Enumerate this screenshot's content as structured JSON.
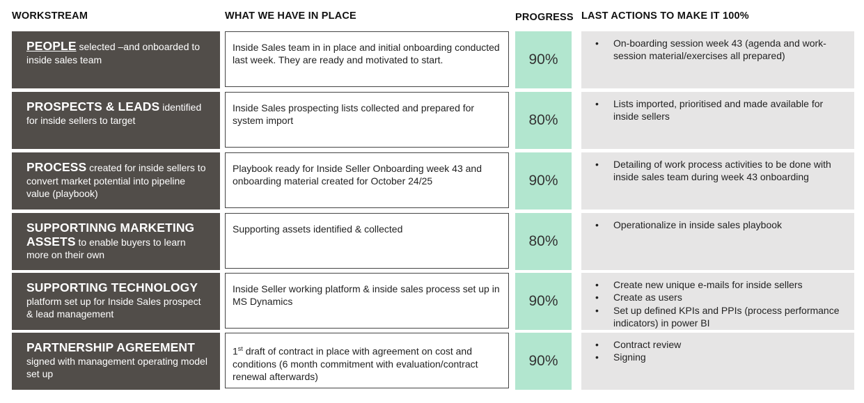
{
  "headers": {
    "workstream": "WORKSTREAM",
    "in_place": "WHAT WE HAVE IN PLACE",
    "progress": "PROGRESS",
    "last_actions": "LAST ACTIONS TO MAKE IT 100%"
  },
  "rows": [
    {
      "title": "PEOPLE",
      "desc": " selected –and onboarded to inside sales team",
      "in_place": "Inside Sales team in in place and initial onboarding conducted last week. They are ready and motivated to start.",
      "progress": "90%",
      "actions": [
        "On-boarding session week 43 (agenda and work-session material/exercises all prepared)"
      ]
    },
    {
      "title": "PROSPECTS & LEADS",
      "desc": " identified for inside sellers to target",
      "in_place": "Inside Sales prospecting lists collected and prepared for system import",
      "progress": "80%",
      "actions": [
        "Lists imported, prioritised and made available for inside sellers"
      ]
    },
    {
      "title": "PROCESS",
      "desc": " created for inside sellers to convert market potential into pipeline value (playbook)",
      "in_place": "Playbook ready for Inside Seller Onboarding week 43 and onboarding material created for October 24/25",
      "progress": "90%",
      "actions": [
        "Detailing of work process activities to be done with inside sales team during week 43 onboarding"
      ]
    },
    {
      "title": "SUPPORTINNG MARKETING ASSETS",
      "desc": " to enable buyers to learn more on their own",
      "in_place": "Supporting assets identified & collected",
      "progress": "80%",
      "actions": [
        "Operationalize in inside sales playbook"
      ]
    },
    {
      "title": "SUPPORTING TECHNOLOGY",
      "desc": " platform set up for Inside Sales prospect & lead management",
      "in_place": "Inside Seller working platform & inside sales process set up in MS Dynamics",
      "progress": "90%",
      "actions": [
        "Create new unique e-mails for inside sellers",
        "Create as users",
        "Set up defined KPIs and PPIs (process performance indicators) in power BI"
      ]
    },
    {
      "title": "PARTNERSHIP AGREEMENT",
      "desc": " signed with management operating model set up",
      "in_place_sup": "st",
      "in_place_num": "1",
      "in_place": " draft of contract in place with agreement on cost and conditions (6 month commitment with evaluation/contract renewal afterwards)",
      "progress": "90%",
      "actions": [
        "Contract review",
        "Signing"
      ]
    }
  ]
}
